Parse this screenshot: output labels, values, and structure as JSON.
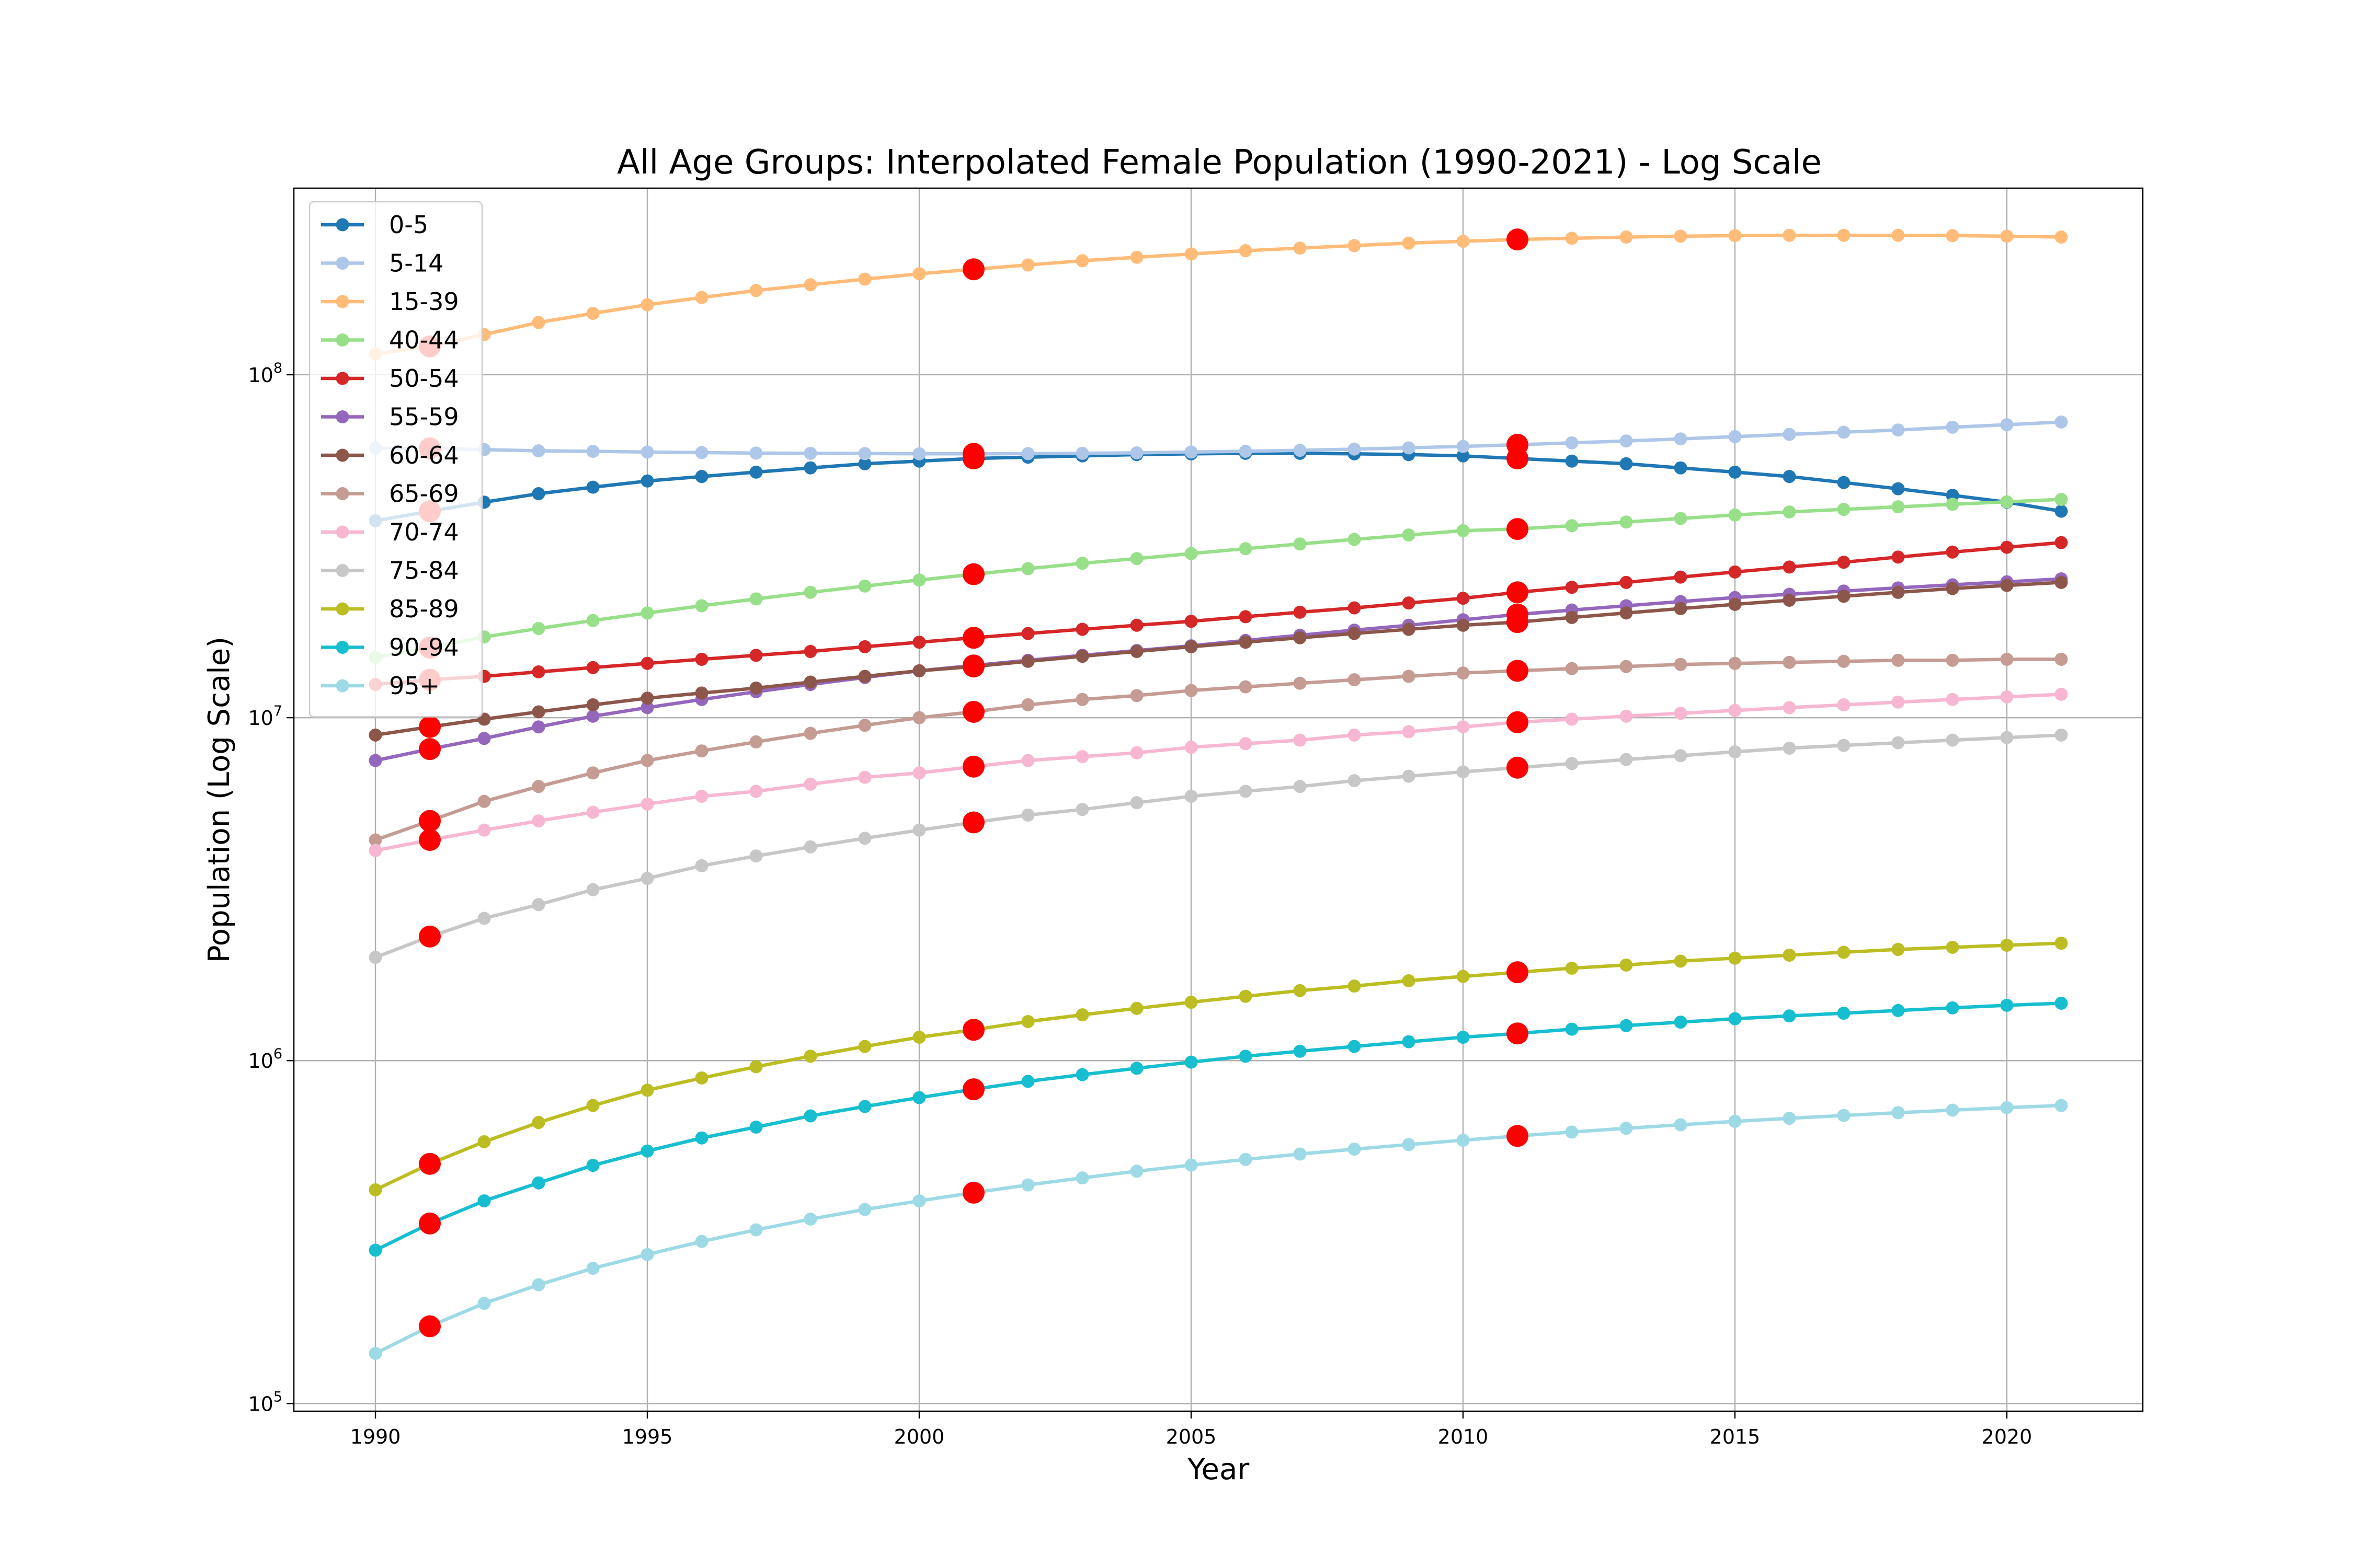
{
  "chart_data": {
    "type": "line",
    "title": "All Age Groups: Interpolated Female Population (1990-2021) - Log Scale",
    "xlabel": "Year",
    "ylabel": "Population (Log Scale)",
    "x_range": [
      1988.5,
      2022.5
    ],
    "y_range": [
      95000,
      350000000
    ],
    "y_scale": "log",
    "x_ticks": [
      1990,
      1995,
      2000,
      2005,
      2010,
      2015,
      2020
    ],
    "y_ticks": [
      {
        "value": 100000,
        "base": "10",
        "exp": "5"
      },
      {
        "value": 1000000,
        "base": "10",
        "exp": "6"
      },
      {
        "value": 10000000,
        "base": "10",
        "exp": "7"
      },
      {
        "value": 100000000,
        "base": "10",
        "exp": "8"
      }
    ],
    "grid": true,
    "legend_position": "top-left",
    "census_marker_color": "#ff0000",
    "years": [
      1990,
      1991,
      1992,
      1993,
      1994,
      1995,
      1996,
      1997,
      1998,
      1999,
      2000,
      2001,
      2002,
      2003,
      2004,
      2005,
      2006,
      2007,
      2008,
      2009,
      2010,
      2011,
      2012,
      2013,
      2014,
      2015,
      2016,
      2017,
      2018,
      2019,
      2020,
      2021
    ],
    "census_years": [
      1991,
      2001,
      2011
    ],
    "series": [
      {
        "name": "0-5",
        "color": "#1f77b4",
        "values": [
          37500000,
          40000000,
          42500000,
          45000000,
          47000000,
          49000000,
          50500000,
          52000000,
          53500000,
          55000000,
          56000000,
          57000000,
          57500000,
          58000000,
          58500000,
          58800000,
          59000000,
          59000000,
          58800000,
          58500000,
          58000000,
          57000000,
          56000000,
          55000000,
          53500000,
          52000000,
          50500000,
          48500000,
          46500000,
          44500000,
          42500000,
          40000000
        ]
      },
      {
        "name": "5-14",
        "color": "#aec7e8",
        "values": [
          61000000,
          61000000,
          60500000,
          60000000,
          59800000,
          59500000,
          59300000,
          59100000,
          59000000,
          58900000,
          58800000,
          58800000,
          58900000,
          59000000,
          59200000,
          59500000,
          59800000,
          60200000,
          60700000,
          61200000,
          61800000,
          62500000,
          63300000,
          64100000,
          65000000,
          66000000,
          67000000,
          68000000,
          69000000,
          70300000,
          71500000,
          72800000
        ]
      },
      {
        "name": "15-39",
        "color": "#ffbb78",
        "values": [
          115000000,
          121000000,
          131000000,
          142000000,
          151000000,
          160000000,
          168000000,
          176000000,
          183000000,
          190000000,
          197000000,
          203000000,
          209000000,
          215000000,
          220000000,
          225000000,
          230000000,
          234000000,
          238000000,
          242000000,
          245000000,
          248000000,
          250000000,
          252000000,
          253500000,
          254500000,
          255000000,
          255000000,
          255000000,
          254500000,
          253500000,
          252000000
        ]
      },
      {
        "name": "40-44",
        "color": "#98df8a",
        "values": [
          15000000,
          16000000,
          17200000,
          18200000,
          19200000,
          20200000,
          21200000,
          22200000,
          23200000,
          24200000,
          25200000,
          26200000,
          27200000,
          28200000,
          29100000,
          30100000,
          31100000,
          32100000,
          33100000,
          34100000,
          35100000,
          35500000,
          36300000,
          37200000,
          38100000,
          39000000,
          39800000,
          40500000,
          41200000,
          41900000,
          42600000,
          43300000
        ]
      },
      {
        "name": "50-54",
        "color": "#d62728",
        "values": [
          12500000,
          12900000,
          13200000,
          13600000,
          14000000,
          14400000,
          14800000,
          15200000,
          15600000,
          16100000,
          16600000,
          17100000,
          17600000,
          18100000,
          18600000,
          19100000,
          19700000,
          20300000,
          20900000,
          21600000,
          22300000,
          23200000,
          24000000,
          24800000,
          25700000,
          26600000,
          27500000,
          28400000,
          29400000,
          30400000,
          31400000,
          32400000
        ]
      },
      {
        "name": "55-59",
        "color": "#9467bd",
        "values": [
          7500000,
          8100000,
          8700000,
          9400000,
          10100000,
          10700000,
          11300000,
          11900000,
          12500000,
          13100000,
          13700000,
          14200000,
          14700000,
          15200000,
          15700000,
          16200000,
          16800000,
          17400000,
          18000000,
          18600000,
          19300000,
          20000000,
          20600000,
          21200000,
          21800000,
          22400000,
          22900000,
          23400000,
          23900000,
          24400000,
          24900000,
          25400000
        ]
      },
      {
        "name": "60-64",
        "color": "#8c564b",
        "values": [
          8900000,
          9400000,
          9900000,
          10400000,
          10900000,
          11400000,
          11800000,
          12200000,
          12700000,
          13200000,
          13700000,
          14100000,
          14600000,
          15100000,
          15600000,
          16100000,
          16600000,
          17100000,
          17600000,
          18100000,
          18600000,
          19000000,
          19600000,
          20200000,
          20800000,
          21400000,
          22000000,
          22600000,
          23200000,
          23800000,
          24300000,
          24800000
        ]
      },
      {
        "name": "65-69",
        "color": "#c49c94",
        "values": [
          4400000,
          5000000,
          5700000,
          6300000,
          6900000,
          7500000,
          8000000,
          8500000,
          9000000,
          9500000,
          10000000,
          10400000,
          10900000,
          11300000,
          11600000,
          12000000,
          12300000,
          12600000,
          12900000,
          13200000,
          13500000,
          13700000,
          13900000,
          14100000,
          14300000,
          14400000,
          14500000,
          14600000,
          14700000,
          14700000,
          14800000,
          14800000
        ]
      },
      {
        "name": "70-74",
        "color": "#f7b6d2",
        "values": [
          4100000,
          4400000,
          4700000,
          5000000,
          5300000,
          5600000,
          5900000,
          6100000,
          6400000,
          6700000,
          6900000,
          7200000,
          7500000,
          7700000,
          7900000,
          8200000,
          8400000,
          8600000,
          8900000,
          9100000,
          9400000,
          9700000,
          9900000,
          10100000,
          10300000,
          10500000,
          10700000,
          10900000,
          11100000,
          11300000,
          11500000,
          11700000
        ]
      },
      {
        "name": "75-84",
        "color": "#c7c7c7",
        "values": [
          2000000,
          2300000,
          2600000,
          2850000,
          3150000,
          3400000,
          3700000,
          3950000,
          4200000,
          4450000,
          4700000,
          4950000,
          5200000,
          5400000,
          5650000,
          5900000,
          6100000,
          6300000,
          6550000,
          6750000,
          6950000,
          7150000,
          7350000,
          7550000,
          7750000,
          7950000,
          8150000,
          8300000,
          8450000,
          8600000,
          8750000,
          8900000
        ]
      },
      {
        "name": "85-89",
        "color": "#bcbd22",
        "values": [
          420000,
          500000,
          580000,
          660000,
          740000,
          820000,
          890000,
          960000,
          1030000,
          1100000,
          1170000,
          1230000,
          1300000,
          1360000,
          1420000,
          1480000,
          1540000,
          1600000,
          1650000,
          1710000,
          1760000,
          1810000,
          1860000,
          1900000,
          1950000,
          1990000,
          2030000,
          2070000,
          2110000,
          2140000,
          2170000,
          2200000
        ]
      },
      {
        "name": "90-94",
        "color": "#17becf",
        "values": [
          280000,
          335000,
          390000,
          440000,
          495000,
          545000,
          595000,
          640000,
          690000,
          735000,
          780000,
          825000,
          870000,
          910000,
          950000,
          990000,
          1030000,
          1065000,
          1100000,
          1135000,
          1170000,
          1200000,
          1235000,
          1265000,
          1295000,
          1325000,
          1350000,
          1375000,
          1400000,
          1425000,
          1450000,
          1470000
        ]
      },
      {
        "name": "95+",
        "color": "#9edae5",
        "values": [
          140000,
          168000,
          196000,
          222000,
          248000,
          272000,
          297000,
          321000,
          345000,
          368000,
          390000,
          412000,
          434000,
          455000,
          476000,
          496000,
          515000,
          534000,
          552000,
          569000,
          586000,
          603000,
          619000,
          635000,
          650000,
          665000,
          679000,
          692000,
          705000,
          717000,
          729000,
          740000
        ]
      }
    ]
  }
}
